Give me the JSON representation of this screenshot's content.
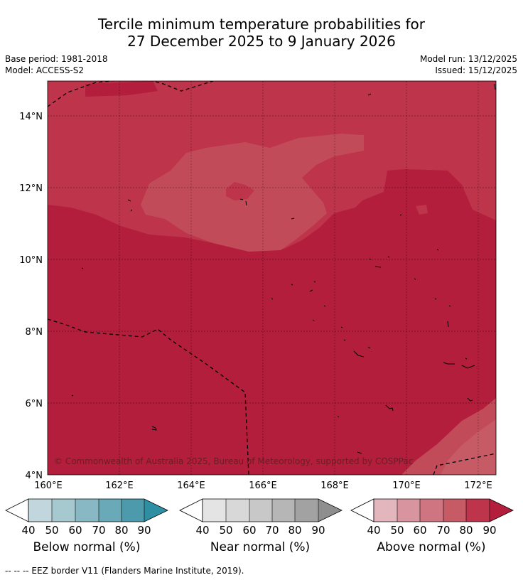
{
  "title_line1": "Tercile minimum temperature probabilities for",
  "title_line2": "27 December 2025 to 9 January 2026",
  "meta": {
    "base_period": "Base period: 1981-2018",
    "model": "Model: ACCESS-S2",
    "model_run": "Model run: 13/12/2025",
    "issued": "Issued: 15/12/2025"
  },
  "map": {
    "lat_ticks": [
      "14°N",
      "12°N",
      "10°N",
      "8°N",
      "6°N",
      "4°N"
    ],
    "lon_ticks": [
      "160°E",
      "162°E",
      "164°E",
      "166°E",
      "168°E",
      "170°E",
      "172°E"
    ],
    "copyright": "© Commonwealth of Australia 2025, Bureau of Meteorology, supported by COSPPac",
    "colors": {
      "above_80_90": "#b21e3b",
      "above_70_80": "#bd344b",
      "above_60_70": "#c24b59",
      "above_50_60": "#c65a65"
    }
  },
  "colorbars": [
    {
      "label": "Below normal (%)",
      "ticks": [
        "40",
        "50",
        "60",
        "70",
        "80",
        "90"
      ],
      "colors": [
        "#c2d7dd",
        "#a6c8cf",
        "#88b8c3",
        "#6aa9b7",
        "#4c9aab",
        "#2e8fa3"
      ]
    },
    {
      "label": "Near normal (%)",
      "ticks": [
        "40",
        "50",
        "60",
        "70",
        "80",
        "90"
      ],
      "colors": [
        "#e4e4e4",
        "#d8d8d8",
        "#c8c8c8",
        "#b6b6b6",
        "#a2a2a2",
        "#8e8e8e"
      ]
    },
    {
      "label": "Above normal (%)",
      "ticks": [
        "40",
        "50",
        "60",
        "70",
        "80",
        "90"
      ],
      "colors": [
        "#e3b5bd",
        "#d9959f",
        "#cf7582",
        "#c65a65",
        "#bd344b",
        "#b21e3b"
      ]
    }
  ],
  "footnote": "--  --  -- EEZ border V11 (Flanders Marine Institute, 2019)."
}
